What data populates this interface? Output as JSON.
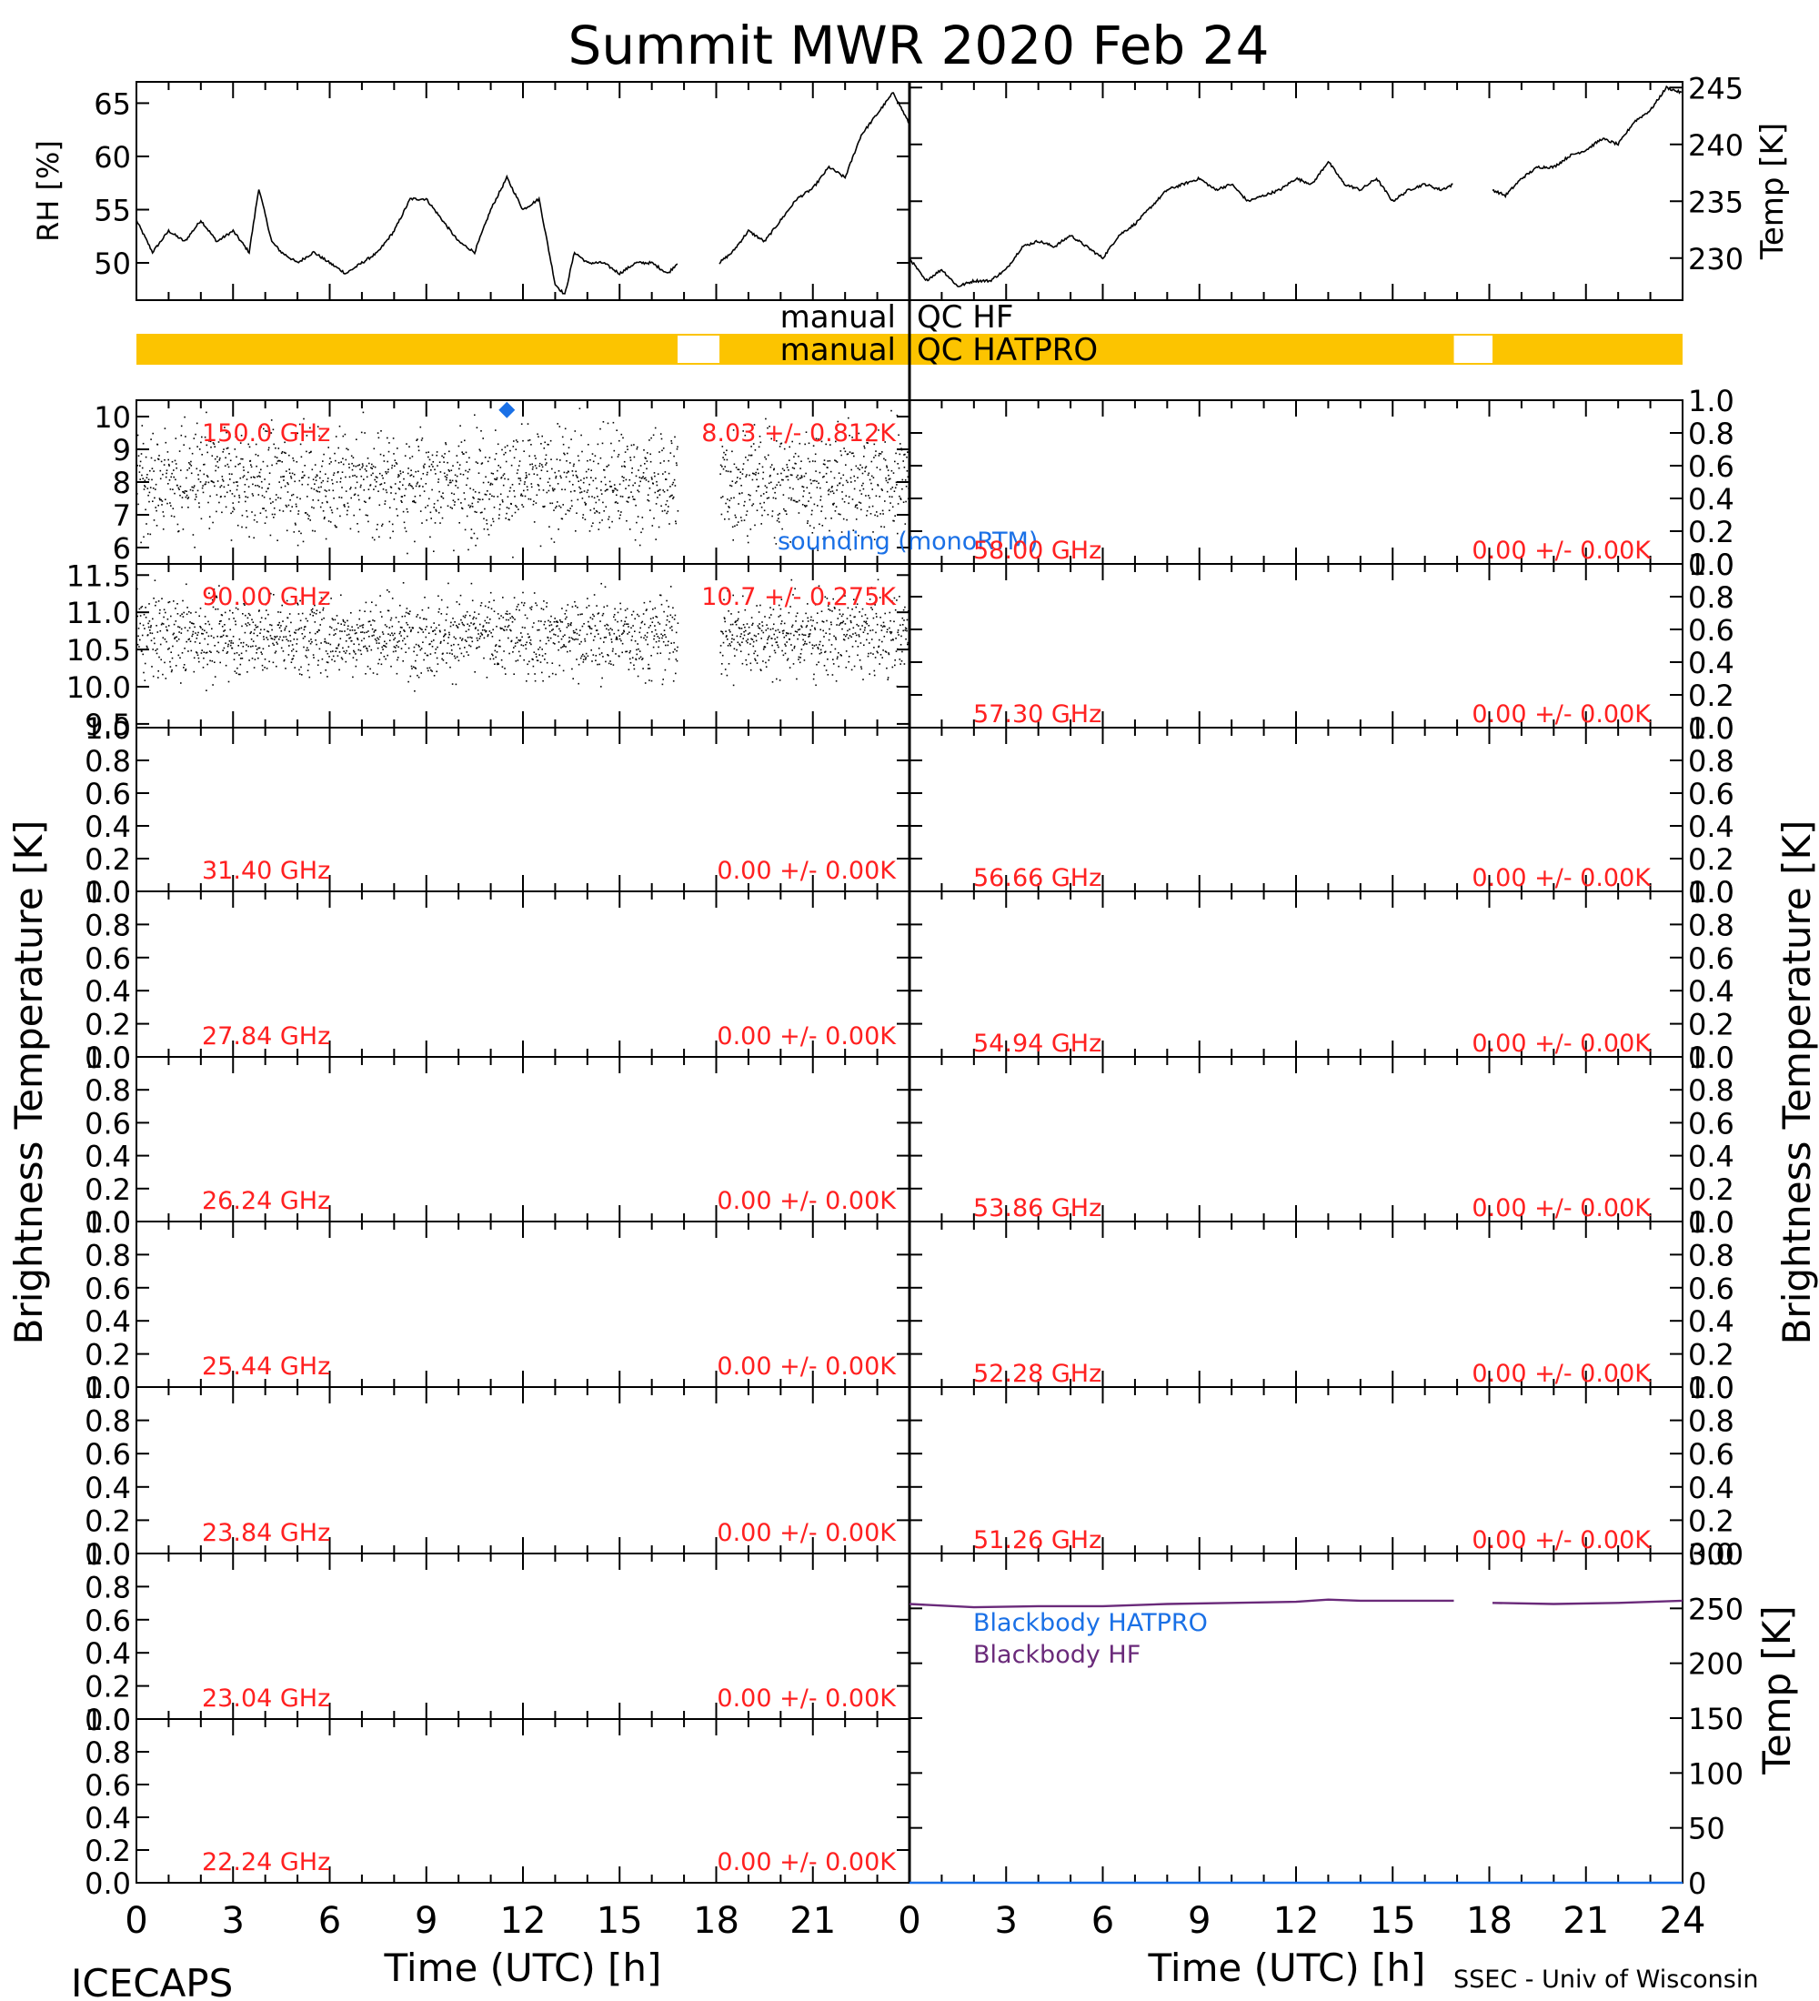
{
  "title": "Summit MWR 2020 Feb 24",
  "footer": {
    "left": "ICECAPS",
    "right": "SSEC - Univ of Wisconsin"
  },
  "colors": {
    "trace": "#000000",
    "label_red": "#ff2020",
    "sounding_blue": "#1a70e6",
    "qc_bar": "#fcc400",
    "hatpro_blue": "#1a70e6",
    "hf_purple": "#6a2a7a"
  },
  "x_axis": {
    "label": "Time (UTC) [h]",
    "range": [
      0,
      24
    ],
    "ticks": [
      "0",
      "3",
      "6",
      "9",
      "12",
      "15",
      "18",
      "21",
      "24"
    ],
    "left_ticks": [
      "0",
      "3",
      "6",
      "9",
      "12",
      "15",
      "18",
      "21"
    ]
  },
  "side_labels": {
    "left": "Brightness Temperature [K]",
    "right": "Brightness Temperature [K]"
  },
  "qc": {
    "hf_label": [
      "manual",
      "QC HF"
    ],
    "hatpro_label": [
      "manual",
      "QC HATPRO"
    ],
    "left_gap_hours": [
      16.8,
      18.1
    ],
    "right_gap_hours": [
      16.9,
      18.1
    ]
  },
  "chart_data": [
    {
      "type": "line",
      "id": "rh",
      "ylabel": "RH [%]",
      "ylim": [
        46.5,
        67
      ],
      "yticks": [
        "50",
        "55",
        "60",
        "65"
      ],
      "x": [
        0,
        0.5,
        1,
        1.5,
        2,
        2.5,
        3,
        3.5,
        3.8,
        4.2,
        4.5,
        5,
        5.5,
        6,
        6.5,
        7,
        7.5,
        8,
        8.5,
        9,
        9.5,
        10,
        10.5,
        11,
        11.5,
        12,
        12.5,
        13,
        13.3,
        13.6,
        14,
        14.5,
        15,
        15.5,
        16,
        16.5,
        16.8
      ],
      "y": [
        54,
        51,
        53,
        52,
        54,
        52,
        53,
        51,
        57,
        52,
        51,
        50,
        51,
        50,
        49,
        50,
        51,
        53,
        56,
        56,
        54,
        52,
        51,
        55,
        58,
        55,
        56,
        48,
        47,
        51,
        50,
        50,
        49,
        50,
        50,
        49,
        50
      ],
      "x2": [
        18.1,
        18.5,
        19,
        19.5,
        20,
        20.5,
        21,
        21.5,
        22,
        22.5,
        23,
        23.5,
        24
      ],
      "y2": [
        50,
        51,
        53,
        52,
        54,
        56,
        57,
        59,
        58,
        62,
        64,
        66,
        63
      ]
    },
    {
      "type": "line",
      "id": "temp",
      "ylabel": "Temp [K]",
      "ylim": [
        226.3,
        245.5
      ],
      "yticks": [
        "230",
        "235",
        "240",
        "245"
      ],
      "x": [
        0,
        0.5,
        1,
        1.5,
        2,
        2.5,
        3,
        3.5,
        4,
        4.5,
        5,
        5.5,
        6,
        6.5,
        7,
        7.5,
        8,
        8.5,
        9,
        9.5,
        10,
        10.5,
        11,
        11.5,
        12,
        12.5,
        13,
        13.5,
        14,
        14.5,
        15,
        15.5,
        16,
        16.5,
        16.9
      ],
      "y": [
        230,
        228,
        229,
        227.5,
        228,
        228,
        229,
        231,
        231.5,
        231,
        232,
        231,
        230,
        232,
        233,
        234.5,
        236,
        236.5,
        237,
        236,
        236.5,
        235,
        235.5,
        236,
        237,
        236.5,
        238.5,
        236.5,
        236,
        237,
        235,
        236,
        236.5,
        236,
        236.5
      ],
      "x2": [
        18.1,
        18.5,
        19,
        19.5,
        20,
        20.5,
        21,
        21.5,
        22,
        22.5,
        23,
        23.5,
        24
      ],
      "y2": [
        236,
        235.5,
        237,
        238,
        238,
        239,
        239.5,
        240.5,
        240,
        242,
        243,
        245,
        244.5
      ]
    },
    {
      "type": "scatter",
      "id": "ch-150",
      "column": "left",
      "freq": "150.0 GHz",
      "stat": "8.03 +/- 0.812K",
      "ylim": [
        5.5,
        10.5
      ],
      "yticks": [
        "6",
        "7",
        "8",
        "9",
        "10"
      ],
      "mean": 8.03,
      "spread": 0.812,
      "gap": [
        16.8,
        18.1
      ],
      "sounding": {
        "label": "sounding (monoRTM)",
        "x": 11.5,
        "y": 10.2
      }
    },
    {
      "type": "scatter",
      "id": "ch-90",
      "column": "left",
      "freq": "90.00 GHz",
      "stat": "10.7 +/- 0.275K",
      "ylim": [
        9.45,
        11.65
      ],
      "yticks": [
        "9.5",
        "10.0",
        "10.5",
        "11.0",
        "11.5"
      ],
      "mean": 10.7,
      "spread": 0.275,
      "gap": [
        16.8,
        18.1
      ]
    },
    {
      "type": "line",
      "id": "ch-3140",
      "column": "left",
      "freq": "31.40 GHz",
      "stat": "0.00 +/- 0.00K",
      "ylim": [
        0,
        1
      ],
      "yticks": [
        "0.0",
        "0.2",
        "0.4",
        "0.6",
        "0.8",
        "1.0"
      ]
    },
    {
      "type": "line",
      "id": "ch-2784",
      "column": "left",
      "freq": "27.84 GHz",
      "stat": "0.00 +/- 0.00K",
      "ylim": [
        0,
        1
      ],
      "yticks": [
        "0.0",
        "0.2",
        "0.4",
        "0.6",
        "0.8",
        "1.0"
      ]
    },
    {
      "type": "line",
      "id": "ch-2624",
      "column": "left",
      "freq": "26.24 GHz",
      "stat": "0.00 +/- 0.00K",
      "ylim": [
        0,
        1
      ],
      "yticks": [
        "0.0",
        "0.2",
        "0.4",
        "0.6",
        "0.8",
        "1.0"
      ]
    },
    {
      "type": "line",
      "id": "ch-2544",
      "column": "left",
      "freq": "25.44 GHz",
      "stat": "0.00 +/- 0.00K",
      "ylim": [
        0,
        1
      ],
      "yticks": [
        "0.0",
        "0.2",
        "0.4",
        "0.6",
        "0.8",
        "1.0"
      ]
    },
    {
      "type": "line",
      "id": "ch-2384",
      "column": "left",
      "freq": "23.84 GHz",
      "stat": "0.00 +/- 0.00K",
      "ylim": [
        0,
        1
      ],
      "yticks": [
        "0.0",
        "0.2",
        "0.4",
        "0.6",
        "0.8",
        "1.0"
      ]
    },
    {
      "type": "line",
      "id": "ch-2304",
      "column": "left",
      "freq": "23.04 GHz",
      "stat": "0.00 +/- 0.00K",
      "ylim": [
        0,
        1
      ],
      "yticks": [
        "0.0",
        "0.2",
        "0.4",
        "0.6",
        "0.8",
        "1.0"
      ]
    },
    {
      "type": "line",
      "id": "ch-2224",
      "column": "left",
      "freq": "22.24 GHz",
      "stat": "0.00 +/- 0.00K",
      "ylim": [
        0,
        1
      ],
      "yticks": [
        "0.0",
        "0.2",
        "0.4",
        "0.6",
        "0.8",
        "1.0"
      ]
    },
    {
      "type": "line",
      "id": "ch-5800",
      "column": "right",
      "freq": "58.00 GHz",
      "stat": "0.00 +/- 0.00K",
      "ylim": [
        0,
        1
      ],
      "yticks": [
        "0.0",
        "0.2",
        "0.4",
        "0.6",
        "0.8",
        "1.0"
      ]
    },
    {
      "type": "line",
      "id": "ch-5730",
      "column": "right",
      "freq": "57.30 GHz",
      "stat": "0.00 +/- 0.00K",
      "ylim": [
        0,
        1
      ],
      "yticks": [
        "0.0",
        "0.2",
        "0.4",
        "0.6",
        "0.8",
        "1.0"
      ]
    },
    {
      "type": "line",
      "id": "ch-5666",
      "column": "right",
      "freq": "56.66 GHz",
      "stat": "0.00 +/- 0.00K",
      "ylim": [
        0,
        1
      ],
      "yticks": [
        "0.0",
        "0.2",
        "0.4",
        "0.6",
        "0.8",
        "1.0"
      ]
    },
    {
      "type": "line",
      "id": "ch-5494",
      "column": "right",
      "freq": "54.94 GHz",
      "stat": "0.00 +/- 0.00K",
      "ylim": [
        0,
        1
      ],
      "yticks": [
        "0.0",
        "0.2",
        "0.4",
        "0.6",
        "0.8",
        "1.0"
      ]
    },
    {
      "type": "line",
      "id": "ch-5386",
      "column": "right",
      "freq": "53.86 GHz",
      "stat": "0.00 +/- 0.00K",
      "ylim": [
        0,
        1
      ],
      "yticks": [
        "0.0",
        "0.2",
        "0.4",
        "0.6",
        "0.8",
        "1.0"
      ]
    },
    {
      "type": "line",
      "id": "ch-5228",
      "column": "right",
      "freq": "52.28 GHz",
      "stat": "0.00 +/- 0.00K",
      "ylim": [
        0,
        1
      ],
      "yticks": [
        "0.0",
        "0.2",
        "0.4",
        "0.6",
        "0.8",
        "1.0"
      ]
    },
    {
      "type": "line",
      "id": "ch-5126",
      "column": "right",
      "freq": "51.26 GHz",
      "stat": "0.00 +/- 0.00K",
      "ylim": [
        0,
        1
      ],
      "yticks": [
        "0.0",
        "0.2",
        "0.4",
        "0.6",
        "0.8",
        "1.0"
      ]
    },
    {
      "type": "line",
      "id": "blackbody",
      "column": "right",
      "ylabel": "Temp [K]",
      "ylim": [
        0,
        300
      ],
      "yticks": [
        "0",
        "50",
        "100",
        "150",
        "200",
        "250",
        "300"
      ],
      "legend": [
        "Blackbody HATPRO",
        "Blackbody HF"
      ],
      "series": [
        {
          "name": "Blackbody HF",
          "x": [
            0,
            2,
            4,
            6,
            8,
            10,
            12,
            13,
            14,
            16.9
          ],
          "y": [
            254,
            251,
            252,
            252,
            254,
            255,
            256,
            258,
            257,
            257
          ],
          "x2": [
            18.1,
            20,
            22,
            24
          ],
          "y2": [
            255,
            254,
            255,
            257
          ]
        },
        {
          "name": "Blackbody HATPRO",
          "x": [
            0,
            24
          ],
          "y": [
            0,
            0
          ]
        }
      ]
    }
  ]
}
